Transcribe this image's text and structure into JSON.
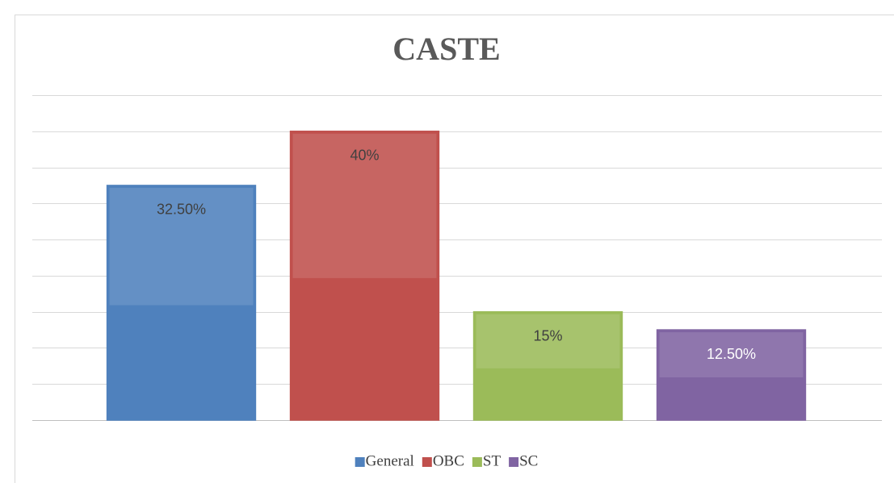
{
  "chart_data": {
    "type": "bar",
    "title": "CASTE",
    "categories": [
      "General",
      "OBC",
      "ST",
      "SC"
    ],
    "values": [
      32.5,
      40,
      15,
      12.5
    ],
    "value_labels": [
      "32.50%",
      "40%",
      "15%",
      "12.50%"
    ],
    "colors": [
      "#4f81bd",
      "#c0504d",
      "#9bbb59",
      "#8064a2"
    ],
    "label_colors": [
      "#404040",
      "#404040",
      "#404040",
      "#ffffff"
    ],
    "ylim": [
      0,
      45
    ],
    "yticks": [
      0,
      5,
      10,
      15,
      20,
      25,
      30,
      35,
      40,
      45
    ],
    "grid": true,
    "legend": "bottom"
  }
}
